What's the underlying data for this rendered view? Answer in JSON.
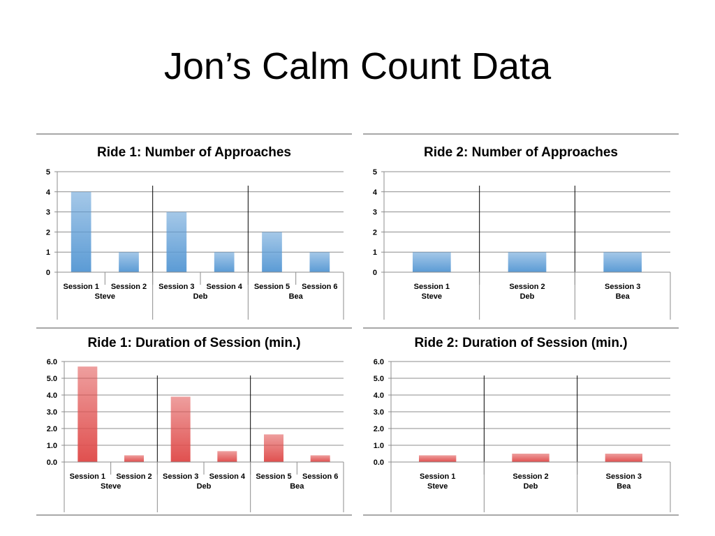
{
  "slide": {
    "title": "Jon’s Calm Count Data"
  },
  "colors": {
    "blue": "#5b9bd5",
    "red": "#e0504f"
  },
  "chart_data": [
    {
      "type": "bar",
      "title": "Ride 1: Number of Approaches",
      "categories": [
        "Session 1",
        "Session 2",
        "Session 3",
        "Session 4",
        "Session 5",
        "Session 6"
      ],
      "groups": [
        {
          "label": "Steve",
          "size": 2
        },
        {
          "label": "Deb",
          "size": 2
        },
        {
          "label": "Bea",
          "size": 2
        }
      ],
      "values": [
        4,
        1,
        3,
        1,
        2,
        1
      ],
      "ylim": [
        0,
        5
      ],
      "yticks": [
        0,
        1,
        2,
        3,
        4,
        5
      ],
      "tick_decimals": 0,
      "color": "blue",
      "grid": true
    },
    {
      "type": "bar",
      "title": "Ride 2: Number of Approaches",
      "categories": [
        "Session 1",
        "Session 2",
        "Session 3"
      ],
      "groups": [
        {
          "label": "Steve",
          "size": 1
        },
        {
          "label": "Deb",
          "size": 1
        },
        {
          "label": "Bea",
          "size": 1
        }
      ],
      "values": [
        1,
        1,
        1
      ],
      "ylim": [
        0,
        5
      ],
      "yticks": [
        0,
        1,
        2,
        3,
        4,
        5
      ],
      "tick_decimals": 0,
      "color": "blue",
      "grid": true
    },
    {
      "type": "bar",
      "title": "Ride 1: Duration of Session (min.)",
      "categories": [
        "Session 1",
        "Session 2",
        "Session 3",
        "Session 4",
        "Session 5",
        "Session 6"
      ],
      "groups": [
        {
          "label": "Steve",
          "size": 2
        },
        {
          "label": "Deb",
          "size": 2
        },
        {
          "label": "Bea",
          "size": 2
        }
      ],
      "values": [
        5.7,
        0.4,
        3.9,
        0.65,
        1.65,
        0.4
      ],
      "ylim": [
        0,
        6
      ],
      "yticks": [
        0,
        1,
        2,
        3,
        4,
        5,
        6
      ],
      "tick_decimals": 1,
      "color": "red",
      "grid": true
    },
    {
      "type": "bar",
      "title": "Ride 2: Duration of Session (min.)",
      "categories": [
        "Session 1",
        "Session 2",
        "Session 3"
      ],
      "groups": [
        {
          "label": "Steve",
          "size": 1
        },
        {
          "label": "Deb",
          "size": 1
        },
        {
          "label": "Bea",
          "size": 1
        }
      ],
      "values": [
        0.4,
        0.5,
        0.5
      ],
      "ylim": [
        0,
        6
      ],
      "yticks": [
        0,
        1,
        2,
        3,
        4,
        5,
        6
      ],
      "tick_decimals": 1,
      "color": "red",
      "grid": true
    }
  ]
}
